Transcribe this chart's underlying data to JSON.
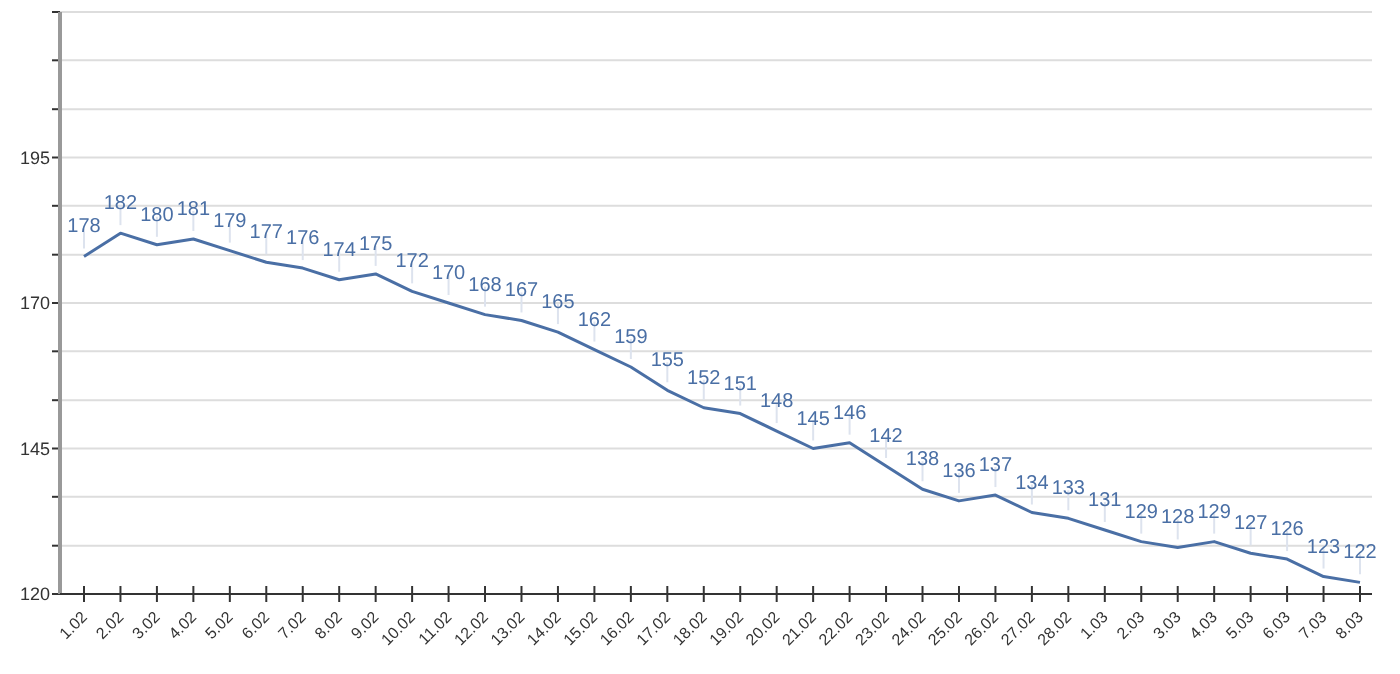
{
  "chart_data": {
    "type": "line",
    "categories": [
      "1.02",
      "2.02",
      "3.02",
      "4.02",
      "5.02",
      "6.02",
      "7.02",
      "8.02",
      "9.02",
      "10.02",
      "11.02",
      "12.02",
      "13.02",
      "14.02",
      "15.02",
      "16.02",
      "17.02",
      "18.02",
      "19.02",
      "20.02",
      "21.02",
      "22.02",
      "23.02",
      "24.02",
      "25.02",
      "26.02",
      "27.02",
      "28.02",
      "1.03",
      "2.03",
      "3.03",
      "4.03",
      "5.03",
      "6.03",
      "7.03",
      "8.03"
    ],
    "series": [
      {
        "color": "#4a6fa5",
        "values": [
          178,
          182,
          180,
          181,
          179,
          177,
          176,
          174,
          175,
          172,
          170,
          168,
          167,
          165,
          162,
          159,
          155,
          152,
          151,
          148,
          145,
          146,
          142,
          138,
          136,
          137,
          134,
          133,
          131,
          129,
          128,
          129,
          127,
          126,
          123,
          122
        ]
      }
    ],
    "ylim": [
      120,
      220
    ],
    "yticks": [
      120,
      {
        "value": 128.3,
        "label": null
      },
      {
        "value": 136.7,
        "label": null
      },
      145,
      {
        "value": 153.3,
        "label": null
      },
      {
        "value": 161.7,
        "label": null
      },
      170,
      {
        "value": 178.3,
        "label": null
      },
      {
        "value": 186.7,
        "label": null
      },
      195,
      {
        "value": 203.3,
        "label": null
      },
      {
        "value": 211.7,
        "label": null
      },
      {
        "value": 220,
        "label": null
      }
    ],
    "grid": "y",
    "data_labels": true,
    "marker": "none",
    "line_style": "solid"
  }
}
